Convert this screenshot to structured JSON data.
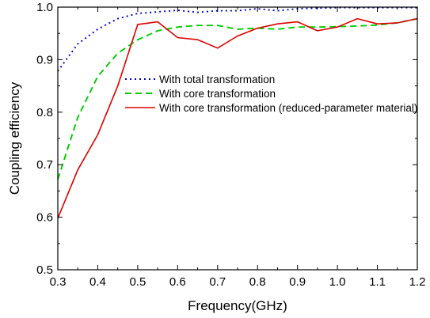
{
  "chart_data": {
    "type": "line",
    "title": "",
    "xlabel": "Frequency(GHz)",
    "ylabel": "Coupling efficiency",
    "xlim": [
      0.3,
      1.2
    ],
    "ylim": [
      0.5,
      1.0
    ],
    "xticks": [
      "0.3",
      "0.4",
      "0.5",
      "0.6",
      "0.7",
      "0.8",
      "0.9",
      "1.0",
      "1.1",
      "1.2"
    ],
    "yticks": [
      "0.5",
      "0.6",
      "0.7",
      "0.8",
      "0.9",
      "1.0"
    ],
    "grid": false,
    "legend_position": "center-right",
    "series": [
      {
        "name": "With total transformation",
        "color": "#0000cc",
        "style": "dotted",
        "x": [
          0.3,
          0.35,
          0.4,
          0.45,
          0.5,
          0.55,
          0.6,
          0.65,
          0.7,
          0.75,
          0.8,
          0.85,
          0.9,
          0.95,
          1.0,
          1.05,
          1.1,
          1.15,
          1.2
        ],
        "y": [
          0.878,
          0.93,
          0.958,
          0.978,
          0.988,
          0.991,
          0.994,
          0.99,
          0.993,
          0.993,
          0.997,
          0.993,
          0.997,
          0.998,
          0.999,
          0.999,
          0.999,
          0.999,
          0.999
        ]
      },
      {
        "name": "With core transformation",
        "color": "#00cc00",
        "style": "dashed",
        "x": [
          0.3,
          0.35,
          0.4,
          0.45,
          0.5,
          0.55,
          0.6,
          0.65,
          0.7,
          0.75,
          0.8,
          0.85,
          0.9,
          0.95,
          1.0,
          1.05,
          1.1,
          1.15,
          1.2
        ],
        "y": [
          0.672,
          0.79,
          0.868,
          0.912,
          0.938,
          0.955,
          0.962,
          0.965,
          0.965,
          0.958,
          0.96,
          0.958,
          0.962,
          0.962,
          0.963,
          0.964,
          0.966,
          0.97,
          0.978
        ]
      },
      {
        "name": "With core transformation (reduced-parameter material)",
        "color": "#dd0000",
        "style": "solid",
        "x": [
          0.3,
          0.35,
          0.4,
          0.45,
          0.5,
          0.55,
          0.6,
          0.65,
          0.7,
          0.75,
          0.8,
          0.85,
          0.9,
          0.95,
          1.0,
          1.05,
          1.1,
          1.15,
          1.2
        ],
        "y": [
          0.598,
          0.69,
          0.757,
          0.85,
          0.967,
          0.972,
          0.942,
          0.938,
          0.922,
          0.945,
          0.96,
          0.968,
          0.972,
          0.955,
          0.962,
          0.978,
          0.968,
          0.97,
          0.978
        ]
      }
    ]
  }
}
